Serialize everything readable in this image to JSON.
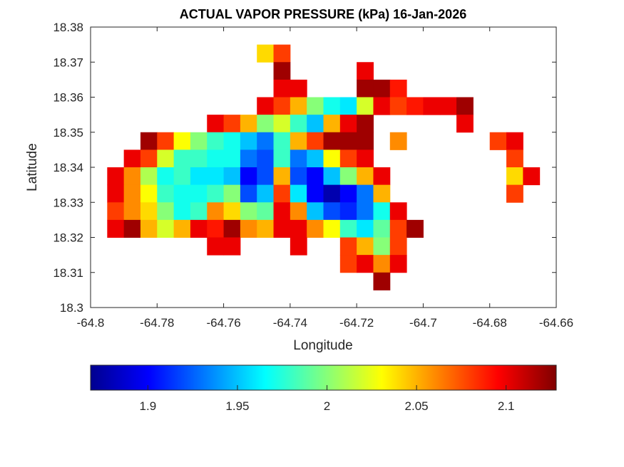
{
  "chart_data": {
    "type": "heatmap",
    "title": "ACTUAL VAPOR PRESSURE (kPa) 16-Jan-2026",
    "xlabel": "Longitude",
    "ylabel": "Latitude",
    "xlim": [
      -64.8,
      -64.66
    ],
    "ylim": [
      18.3,
      18.38
    ],
    "xticks": [
      -64.8,
      -64.78,
      -64.76,
      -64.74,
      -64.72,
      -64.7,
      -64.68,
      -64.66
    ],
    "xtick_labels": [
      "-64.8",
      "-64.78",
      "-64.76",
      "-64.74",
      "-64.72",
      "-64.7",
      "-64.68",
      "-64.66"
    ],
    "yticks": [
      18.3,
      18.31,
      18.32,
      18.33,
      18.34,
      18.35,
      18.36,
      18.37,
      18.38
    ],
    "ytick_labels": [
      "18.3",
      "18.31",
      "18.32",
      "18.33",
      "18.34",
      "18.35",
      "18.36",
      "18.37",
      "18.38"
    ],
    "grid": false,
    "colormap": "jet",
    "clim": [
      1.868,
      2.128
    ],
    "colorbar": {
      "location": "bottom",
      "ticks": [
        1.9,
        1.95,
        2,
        2.05,
        2.1
      ],
      "tick_labels": [
        "1.9",
        "1.95",
        "2",
        "2.05",
        "2.1"
      ]
    },
    "grid_lon_first_center": -64.7975,
    "grid_lon_step": 0.005,
    "grid_lat_first_center": 18.3775,
    "grid_lat_step": -0.005,
    "values": [
      [
        null,
        null,
        null,
        null,
        null,
        null,
        null,
        null,
        null,
        null,
        null,
        null,
        null,
        null,
        null,
        null,
        null,
        null,
        null,
        null,
        null,
        null,
        null,
        null,
        null,
        null,
        null,
        null
      ],
      [
        null,
        null,
        null,
        null,
        null,
        null,
        null,
        null,
        null,
        null,
        2.04,
        2.08,
        null,
        null,
        null,
        null,
        null,
        null,
        null,
        null,
        null,
        null,
        null,
        null,
        null,
        null,
        null,
        null
      ],
      [
        null,
        null,
        null,
        null,
        null,
        null,
        null,
        null,
        null,
        null,
        null,
        2.12,
        null,
        null,
        null,
        null,
        2.1,
        null,
        null,
        null,
        null,
        null,
        null,
        null,
        null,
        null,
        null,
        null
      ],
      [
        null,
        null,
        null,
        null,
        null,
        null,
        null,
        null,
        null,
        null,
        null,
        2.1,
        2.1,
        null,
        null,
        null,
        2.12,
        2.12,
        2.09,
        null,
        null,
        null,
        null,
        null,
        null,
        null,
        null,
        null
      ],
      [
        null,
        null,
        null,
        null,
        null,
        null,
        null,
        null,
        null,
        null,
        2.1,
        2.08,
        2.05,
        2.0,
        1.97,
        1.96,
        2.02,
        2.1,
        2.08,
        2.09,
        2.1,
        2.1,
        2.12,
        null,
        null,
        null,
        null,
        null
      ],
      [
        null,
        null,
        null,
        null,
        null,
        null,
        null,
        2.1,
        2.08,
        2.05,
        2.0,
        2.02,
        1.98,
        1.95,
        2.05,
        2.1,
        2.12,
        null,
        null,
        null,
        null,
        null,
        2.1,
        null,
        null,
        null,
        null,
        null
      ],
      [
        null,
        null,
        null,
        2.12,
        2.08,
        2.03,
        2.0,
        1.98,
        1.97,
        1.95,
        1.93,
        1.98,
        2.05,
        2.08,
        2.12,
        2.12,
        2.12,
        null,
        2.06,
        null,
        null,
        null,
        null,
        null,
        2.08,
        2.1,
        null,
        null
      ],
      [
        null,
        null,
        2.1,
        2.08,
        2.02,
        1.98,
        1.98,
        1.97,
        1.97,
        1.93,
        1.92,
        1.98,
        1.93,
        1.95,
        2.03,
        2.08,
        2.1,
        null,
        null,
        null,
        null,
        null,
        null,
        null,
        null,
        2.08,
        null,
        null
      ],
      [
        null,
        2.1,
        2.06,
        2.01,
        1.97,
        1.98,
        1.96,
        1.96,
        1.95,
        1.9,
        1.92,
        2.05,
        1.92,
        1.9,
        1.95,
        2.0,
        2.05,
        2.1,
        null,
        null,
        null,
        null,
        null,
        null,
        null,
        2.04,
        2.1,
        null
      ],
      [
        null,
        2.1,
        2.06,
        2.03,
        1.98,
        1.97,
        1.97,
        1.98,
        2.0,
        1.92,
        1.95,
        2.08,
        1.96,
        1.9,
        1.88,
        1.9,
        1.93,
        2.05,
        null,
        null,
        null,
        null,
        null,
        null,
        null,
        2.08,
        null,
        null
      ],
      [
        null,
        2.08,
        2.06,
        2.04,
        2.0,
        1.97,
        1.98,
        2.06,
        2.04,
        2.0,
        1.99,
        2.1,
        2.06,
        1.95,
        1.92,
        1.91,
        1.93,
        1.97,
        2.1,
        null,
        null,
        null,
        null,
        null,
        null,
        null,
        null,
        null
      ],
      [
        null,
        2.1,
        2.12,
        2.05,
        2.02,
        2.05,
        2.1,
        2.09,
        2.12,
        2.06,
        2.05,
        2.1,
        2.1,
        2.06,
        2.03,
        1.98,
        1.96,
        1.99,
        2.08,
        2.12,
        null,
        null,
        null,
        null,
        null,
        null,
        null,
        null
      ],
      [
        null,
        null,
        null,
        null,
        null,
        null,
        null,
        2.1,
        2.1,
        null,
        null,
        null,
        2.1,
        null,
        null,
        2.08,
        2.05,
        2.0,
        2.08,
        null,
        null,
        null,
        null,
        null,
        null,
        null,
        null,
        null
      ],
      [
        null,
        null,
        null,
        null,
        null,
        null,
        null,
        null,
        null,
        null,
        null,
        null,
        null,
        null,
        null,
        2.08,
        2.1,
        2.06,
        2.1,
        null,
        null,
        null,
        null,
        null,
        null,
        null,
        null,
        null
      ],
      [
        null,
        null,
        null,
        null,
        null,
        null,
        null,
        null,
        null,
        null,
        null,
        null,
        null,
        null,
        null,
        null,
        null,
        2.12,
        null,
        null,
        null,
        null,
        null,
        null,
        null,
        null,
        null,
        null
      ],
      [
        null,
        null,
        null,
        null,
        null,
        null,
        null,
        null,
        null,
        null,
        null,
        null,
        null,
        null,
        null,
        null,
        null,
        null,
        null,
        null,
        null,
        null,
        null,
        null,
        null,
        null,
        null,
        null
      ]
    ]
  }
}
